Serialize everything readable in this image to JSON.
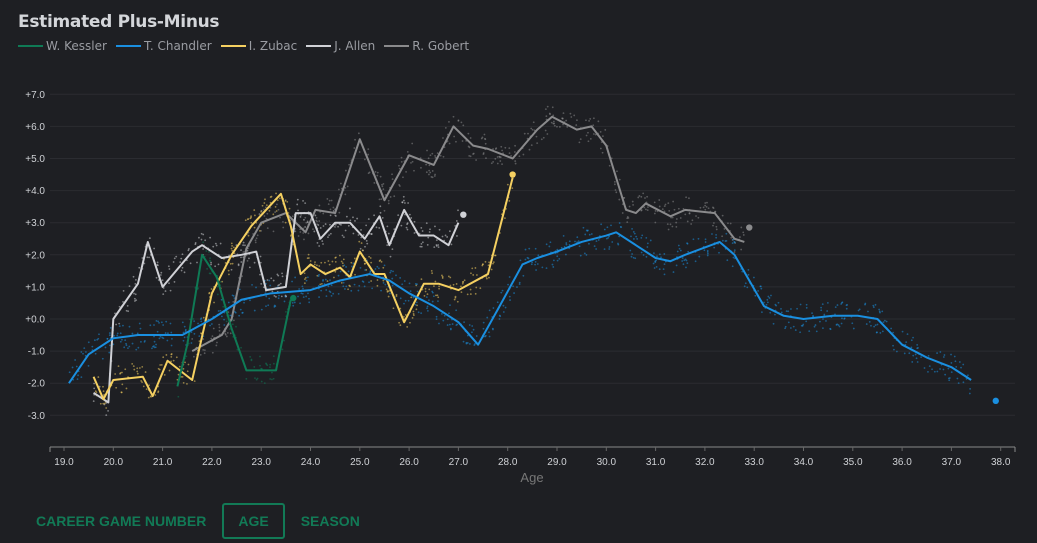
{
  "chart_data": {
    "type": "line",
    "title": "Estimated Plus-Minus",
    "xlabel": "Age",
    "ylabel": "",
    "xlim": [
      18.7,
      38.3
    ],
    "ylim": [
      -4.0,
      7.4
    ],
    "x_ticks": [
      "19.0",
      "20.0",
      "21.0",
      "22.0",
      "23.0",
      "24.0",
      "25.0",
      "26.0",
      "27.0",
      "28.0",
      "29.0",
      "30.0",
      "31.0",
      "32.0",
      "33.0",
      "34.0",
      "35.0",
      "36.0",
      "37.0",
      "38.0"
    ],
    "y_ticks": [
      "+7.0",
      "+6.0",
      "+5.0",
      "+4.0",
      "+3.0",
      "+2.0",
      "+1.0",
      "+0.0",
      "-1.0",
      "-2.0",
      "-3.0"
    ],
    "grid": "horizontal",
    "legend": "top-left",
    "series": [
      {
        "name": "W. Kessler",
        "color": "#0f7a55",
        "x": [
          21.3,
          21.5,
          21.8,
          22.1,
          22.4,
          22.7,
          23.3,
          23.6
        ],
        "y": [
          -2.1,
          -0.8,
          2.0,
          1.3,
          -0.3,
          -1.6,
          -1.6,
          0.6
        ],
        "end": [
          23.65,
          0.65
        ]
      },
      {
        "name": "T. Chandler",
        "color": "#1a8fe0",
        "x": [
          19.1,
          19.5,
          20.0,
          20.5,
          21.4,
          22.0,
          22.6,
          23.2,
          24.0,
          24.6,
          25.2,
          25.6,
          26.0,
          26.5,
          27.0,
          27.4,
          27.8,
          28.3,
          28.6,
          29.0,
          29.5,
          30.0,
          30.2,
          30.6,
          31.0,
          31.3,
          31.6,
          32.3,
          32.6,
          33.2,
          33.6,
          34.0,
          34.6,
          35.1,
          35.5,
          36.0,
          36.5,
          37.0,
          37.4
        ],
        "y": [
          -2.0,
          -1.1,
          -0.6,
          -0.5,
          -0.5,
          0.0,
          0.6,
          0.8,
          0.9,
          1.2,
          1.4,
          1.2,
          0.8,
          0.4,
          -0.1,
          -0.8,
          0.3,
          1.7,
          1.9,
          2.1,
          2.4,
          2.6,
          2.7,
          2.3,
          1.9,
          1.8,
          2.0,
          2.4,
          2.0,
          0.4,
          0.1,
          0.0,
          0.1,
          0.1,
          0.0,
          -0.8,
          -1.2,
          -1.5,
          -1.9
        ],
        "end": [
          37.9,
          -2.55
        ]
      },
      {
        "name": "I. Zubac",
        "color": "#f5d061",
        "x": [
          19.6,
          19.8,
          20.0,
          20.6,
          20.8,
          21.1,
          21.6,
          22.0,
          22.4,
          22.8,
          23.4,
          23.6,
          23.8,
          24.0,
          24.3,
          24.6,
          24.8,
          25.0,
          25.3,
          25.5,
          25.9,
          26.3,
          26.6,
          27.0,
          27.6,
          28.1
        ],
        "y": [
          -1.8,
          -2.5,
          -1.9,
          -1.8,
          -2.4,
          -1.3,
          -1.9,
          0.8,
          2.0,
          2.9,
          3.9,
          2.9,
          1.4,
          1.7,
          1.4,
          1.6,
          1.3,
          2.1,
          1.4,
          1.4,
          -0.1,
          1.1,
          1.1,
          0.9,
          1.4,
          4.4
        ],
        "end": [
          28.1,
          4.5
        ]
      },
      {
        "name": "J. Allen",
        "color": "#d0d1d6",
        "x": [
          19.6,
          19.9,
          20.0,
          20.5,
          20.7,
          21.0,
          21.6,
          21.8,
          22.2,
          22.6,
          22.9,
          23.1,
          23.5,
          23.7,
          24.0,
          24.2,
          24.5,
          24.8,
          25.1,
          25.4,
          25.6,
          25.9,
          26.2,
          26.5,
          26.8,
          27.0
        ],
        "y": [
          -2.3,
          -2.6,
          0.0,
          1.1,
          2.4,
          1.0,
          2.1,
          2.3,
          1.9,
          2.0,
          2.1,
          0.9,
          1.0,
          3.3,
          3.3,
          2.5,
          3.0,
          3.0,
          2.5,
          3.2,
          2.3,
          3.4,
          2.6,
          2.6,
          2.3,
          3.0
        ],
        "end": [
          27.1,
          3.25
        ]
      },
      {
        "name": "R. Gobert",
        "color": "#8a8a8c",
        "x": [
          21.6,
          22.2,
          22.4,
          22.7,
          23.0,
          23.5,
          23.9,
          24.1,
          24.5,
          25.0,
          25.5,
          26.0,
          26.5,
          26.9,
          27.3,
          27.6,
          28.1,
          28.6,
          28.9,
          29.4,
          29.7,
          30.0,
          30.4,
          30.6,
          30.8,
          31.3,
          31.6,
          32.2,
          32.6,
          32.8
        ],
        "y": [
          -1.0,
          -0.5,
          0.0,
          2.2,
          3.0,
          3.3,
          2.7,
          3.4,
          3.3,
          5.6,
          3.7,
          5.1,
          4.8,
          6.0,
          5.4,
          5.3,
          5.0,
          5.9,
          6.3,
          5.9,
          6.0,
          5.4,
          3.4,
          3.3,
          3.6,
          3.2,
          3.4,
          3.3,
          2.5,
          2.4
        ],
        "end": [
          32.9,
          2.85
        ]
      }
    ]
  },
  "modes": {
    "items": [
      "CAREER GAME NUMBER",
      "AGE",
      "SEASON"
    ],
    "active": "AGE"
  }
}
